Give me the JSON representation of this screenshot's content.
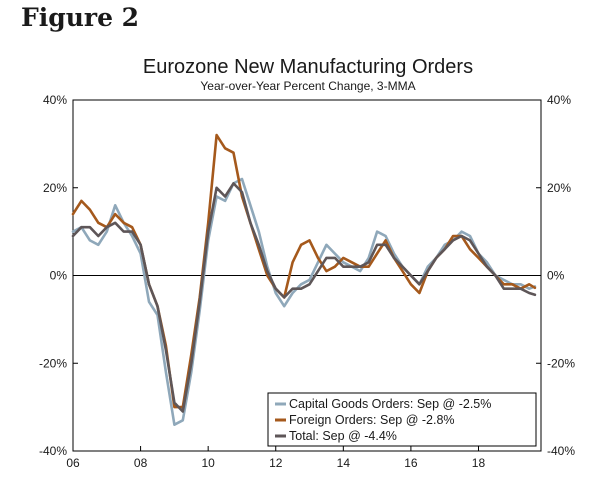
{
  "figure_label": "Figure 2",
  "chart_data": {
    "type": "line",
    "title": "Eurozone New Manufacturing Orders",
    "subtitle": "Year-over-Year Percent Change, 3-MMA",
    "xlabel": "",
    "ylabel": "",
    "xlim": [
      2006,
      2019.85
    ],
    "ylim": [
      -40,
      40
    ],
    "x_ticks": [
      {
        "value": 2006,
        "label": "06"
      },
      {
        "value": 2008,
        "label": "08"
      },
      {
        "value": 2010,
        "label": "10"
      },
      {
        "value": 2012,
        "label": "12"
      },
      {
        "value": 2014,
        "label": "14"
      },
      {
        "value": 2016,
        "label": "16"
      },
      {
        "value": 2018,
        "label": "18"
      }
    ],
    "y_ticks": [
      {
        "value": 40,
        "label": "40%"
      },
      {
        "value": 20,
        "label": "20%"
      },
      {
        "value": 0,
        "label": "0%"
      },
      {
        "value": -20,
        "label": "-20%"
      },
      {
        "value": -40,
        "label": "-40%"
      }
    ],
    "legend_position": "bottom-right",
    "series": [
      {
        "name": "Capital Goods Orders: Sep @ -2.5%",
        "color": "#8fa8ba",
        "x": [
          2006.0,
          2006.25,
          2006.5,
          2006.75,
          2007.0,
          2007.25,
          2007.5,
          2007.75,
          2008.0,
          2008.25,
          2008.5,
          2008.75,
          2009.0,
          2009.25,
          2009.5,
          2009.75,
          2010.0,
          2010.25,
          2010.5,
          2010.75,
          2011.0,
          2011.25,
          2011.5,
          2011.75,
          2012.0,
          2012.25,
          2012.5,
          2012.75,
          2013.0,
          2013.25,
          2013.5,
          2013.75,
          2014.0,
          2014.25,
          2014.5,
          2014.75,
          2015.0,
          2015.25,
          2015.5,
          2015.75,
          2016.0,
          2016.25,
          2016.5,
          2016.75,
          2017.0,
          2017.25,
          2017.5,
          2017.75,
          2018.0,
          2018.25,
          2018.5,
          2018.75,
          2019.0,
          2019.25,
          2019.5,
          2019.67
        ],
        "y": [
          10,
          11,
          8,
          7,
          10,
          16,
          12,
          9,
          5,
          -6,
          -9,
          -22,
          -34,
          -33,
          -22,
          -8,
          8,
          18,
          17,
          21,
          22,
          16,
          10,
          2,
          -4,
          -7,
          -4,
          -2,
          -1,
          3,
          7,
          5,
          3,
          2,
          1,
          4,
          10,
          9,
          5,
          2,
          0,
          -2,
          2,
          4,
          7,
          8,
          10,
          9,
          5,
          3,
          0,
          -1,
          -2,
          -2,
          -3,
          -2.5
        ]
      },
      {
        "name": "Foreign Orders: Sep @ -2.8%",
        "color": "#a5591c",
        "x": [
          2006.0,
          2006.25,
          2006.5,
          2006.75,
          2007.0,
          2007.25,
          2007.5,
          2007.75,
          2008.0,
          2008.25,
          2008.5,
          2008.75,
          2009.0,
          2009.25,
          2009.5,
          2009.75,
          2010.0,
          2010.25,
          2010.5,
          2010.75,
          2011.0,
          2011.25,
          2011.5,
          2011.75,
          2012.0,
          2012.25,
          2012.5,
          2012.75,
          2013.0,
          2013.25,
          2013.5,
          2013.75,
          2014.0,
          2014.25,
          2014.5,
          2014.75,
          2015.0,
          2015.25,
          2015.5,
          2015.75,
          2016.0,
          2016.25,
          2016.5,
          2016.75,
          2017.0,
          2017.25,
          2017.5,
          2017.75,
          2018.0,
          2018.25,
          2018.5,
          2018.75,
          2019.0,
          2019.25,
          2019.5,
          2019.67
        ],
        "y": [
          14,
          17,
          15,
          12,
          11,
          14,
          12,
          11,
          7,
          -2,
          -7,
          -16,
          -30,
          -30,
          -18,
          -5,
          12,
          32,
          29,
          28,
          18,
          12,
          6,
          0,
          -3,
          -5,
          3,
          7,
          8,
          4,
          1,
          2,
          4,
          3,
          2,
          2,
          5,
          8,
          4,
          1,
          -2,
          -4,
          1,
          4,
          6,
          9,
          9,
          6,
          4,
          2,
          0,
          -2,
          -2,
          -3,
          -2,
          -2.8
        ]
      },
      {
        "name": "Total: Sep @ -4.4%",
        "color": "#5e5658",
        "x": [
          2006.0,
          2006.25,
          2006.5,
          2006.75,
          2007.0,
          2007.25,
          2007.5,
          2007.75,
          2008.0,
          2008.25,
          2008.5,
          2008.75,
          2009.0,
          2009.25,
          2009.5,
          2009.75,
          2010.0,
          2010.25,
          2010.5,
          2010.75,
          2011.0,
          2011.25,
          2011.5,
          2011.75,
          2012.0,
          2012.25,
          2012.5,
          2012.75,
          2013.0,
          2013.25,
          2013.5,
          2013.75,
          2014.0,
          2014.25,
          2014.5,
          2014.75,
          2015.0,
          2015.25,
          2015.5,
          2015.75,
          2016.0,
          2016.25,
          2016.5,
          2016.75,
          2017.0,
          2017.25,
          2017.5,
          2017.75,
          2018.0,
          2018.25,
          2018.5,
          2018.75,
          2019.0,
          2019.25,
          2019.5,
          2019.67
        ],
        "y": [
          9,
          11,
          11,
          9,
          11,
          12,
          10,
          10,
          7,
          -2,
          -7,
          -17,
          -29,
          -31,
          -20,
          -6,
          10,
          20,
          18,
          21,
          19,
          12,
          7,
          1,
          -3,
          -5,
          -3,
          -3,
          -2,
          1,
          4,
          4,
          2,
          2,
          2,
          3,
          7,
          7,
          4,
          2,
          0,
          -2,
          1,
          4,
          6,
          8,
          9,
          8,
          5,
          2,
          0,
          -3,
          -3,
          -3,
          -4,
          -4.4
        ]
      }
    ]
  }
}
